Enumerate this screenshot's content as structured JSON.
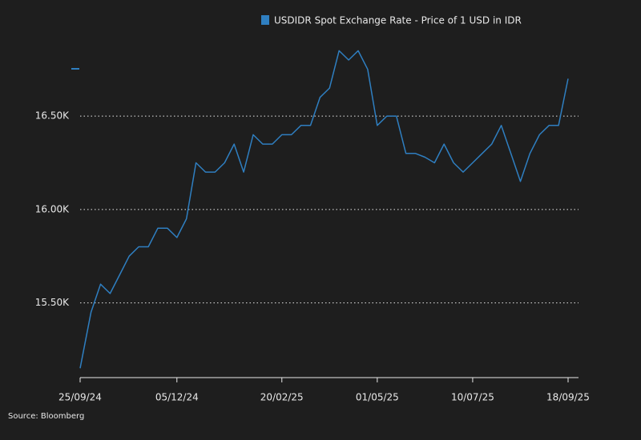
{
  "chart_data": {
    "type": "line",
    "title": "USDIDR Spot Exchange Rate - Price of 1 USD in IDR",
    "source": "Source: Bloomberg",
    "x": [
      "25/09/24",
      "03/10/24",
      "10/10/24",
      "17/10/24",
      "24/10/24",
      "31/10/24",
      "07/11/24",
      "14/11/24",
      "21/11/24",
      "28/11/24",
      "05/12/24",
      "12/12/24",
      "19/12/24",
      "26/12/24",
      "02/01/25",
      "09/01/25",
      "16/01/25",
      "23/01/25",
      "30/01/25",
      "06/02/25",
      "13/02/25",
      "20/02/25",
      "27/02/25",
      "06/03/25",
      "13/03/25",
      "20/03/25",
      "27/03/25",
      "03/04/25",
      "10/04/25",
      "17/04/25",
      "24/04/25",
      "01/05/25",
      "08/05/25",
      "15/05/25",
      "22/05/25",
      "29/05/25",
      "05/06/25",
      "12/06/25",
      "19/06/25",
      "26/06/25",
      "03/07/25",
      "10/07/25",
      "17/07/25",
      "24/07/25",
      "31/07/25",
      "07/08/25",
      "14/08/25",
      "21/08/25",
      "28/08/25",
      "04/09/25",
      "11/09/25",
      "18/09/25"
    ],
    "series": [
      {
        "name": "USDIDR Spot Exchange Rate - Price of 1 USD in IDR",
        "color": "#2f7fc1",
        "values": [
          15150,
          15450,
          15600,
          15550,
          15650,
          15750,
          15800,
          15800,
          15900,
          15900,
          15850,
          15950,
          16250,
          16200,
          16200,
          16250,
          16350,
          16200,
          16400,
          16350,
          16350,
          16400,
          16400,
          16450,
          16450,
          16600,
          16650,
          16850,
          16800,
          16850,
          16750,
          16450,
          16500,
          16500,
          16300,
          16300,
          16280,
          16250,
          16350,
          16250,
          16200,
          16250,
          16300,
          16350,
          16450,
          16300,
          16150,
          16300,
          16400,
          16450,
          16450,
          16700
        ]
      }
    ],
    "xticks": [
      "25/09/24",
      "05/12/24",
      "20/02/25",
      "01/05/25",
      "10/07/25",
      "18/09/25"
    ],
    "ylim": [
      15100,
      16950
    ],
    "yticks": [
      {
        "value": 15500,
        "label": "15.50K"
      },
      {
        "value": 16000,
        "label": "16.00K"
      },
      {
        "value": 16500,
        "label": "16.50K"
      }
    ],
    "grid": true
  }
}
